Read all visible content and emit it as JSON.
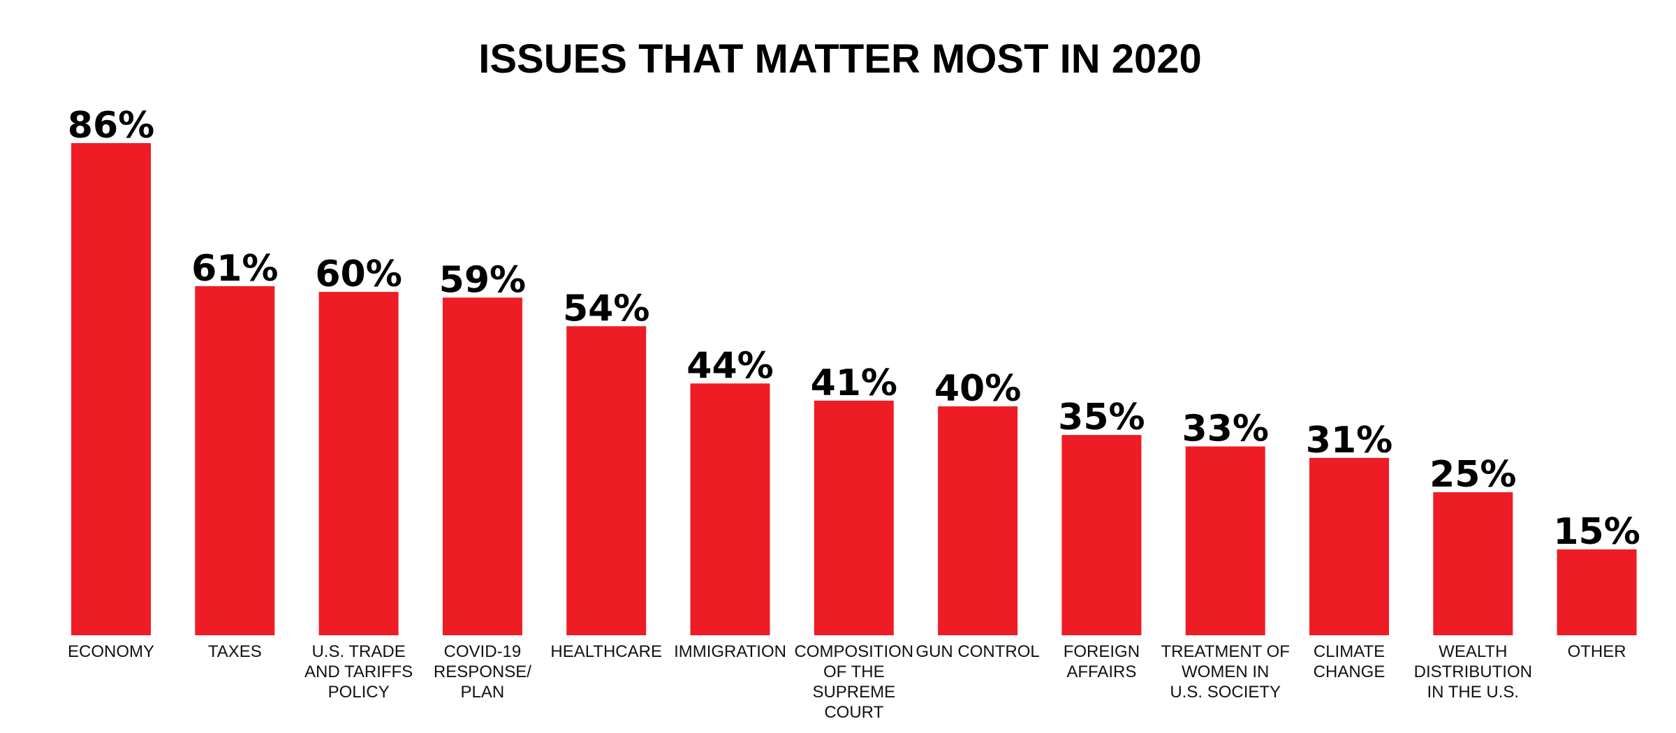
{
  "chart_data": {
    "type": "bar",
    "title": "ISSUES THAT MATTER MOST IN 2020",
    "xlabel": "",
    "ylabel": "",
    "ylim": [
      0,
      86
    ],
    "grid": false,
    "bar_color": "#ee1c25",
    "categories": [
      "ECONOMY",
      "TAXES",
      "U.S. TRADE AND TARIFFS POLICY",
      "COVID-19 RESPONSE/ PLAN",
      "HEALTHCARE",
      "IMMIGRATION",
      "COMPOSITION OF THE SUPREME COURT",
      "GUN CONTROL",
      "FOREIGN AFFAIRS",
      "TREATMENT OF WOMEN IN U.S. SOCIETY",
      "CLIMATE CHANGE",
      "WEALTH DISTRIBUTION IN THE U.S.",
      "OTHER"
    ],
    "category_lines": [
      [
        "ECONOMY"
      ],
      [
        "TAXES"
      ],
      [
        "U.S. TRADE",
        "AND TARIFFS",
        "POLICY"
      ],
      [
        "COVID-19",
        "RESPONSE/",
        "PLAN"
      ],
      [
        "HEALTHCARE"
      ],
      [
        "IMMIGRATION"
      ],
      [
        "COMPOSITION",
        "OF THE",
        "SUPREME",
        "COURT"
      ],
      [
        "GUN CONTROL"
      ],
      [
        "FOREIGN",
        "AFFAIRS"
      ],
      [
        "TREATMENT OF",
        "WOMEN IN",
        "U.S. SOCIETY"
      ],
      [
        "CLIMATE",
        "CHANGE"
      ],
      [
        "WEALTH",
        "DISTRIBUTION",
        "IN THE U.S."
      ],
      [
        "OTHER"
      ]
    ],
    "values": [
      86,
      61,
      60,
      59,
      54,
      44,
      41,
      40,
      35,
      33,
      31,
      25,
      15
    ],
    "value_labels": [
      "86%",
      "61%",
      "60%",
      "59%",
      "54%",
      "44%",
      "41%",
      "40%",
      "35%",
      "33%",
      "31%",
      "25%",
      "15%"
    ]
  }
}
